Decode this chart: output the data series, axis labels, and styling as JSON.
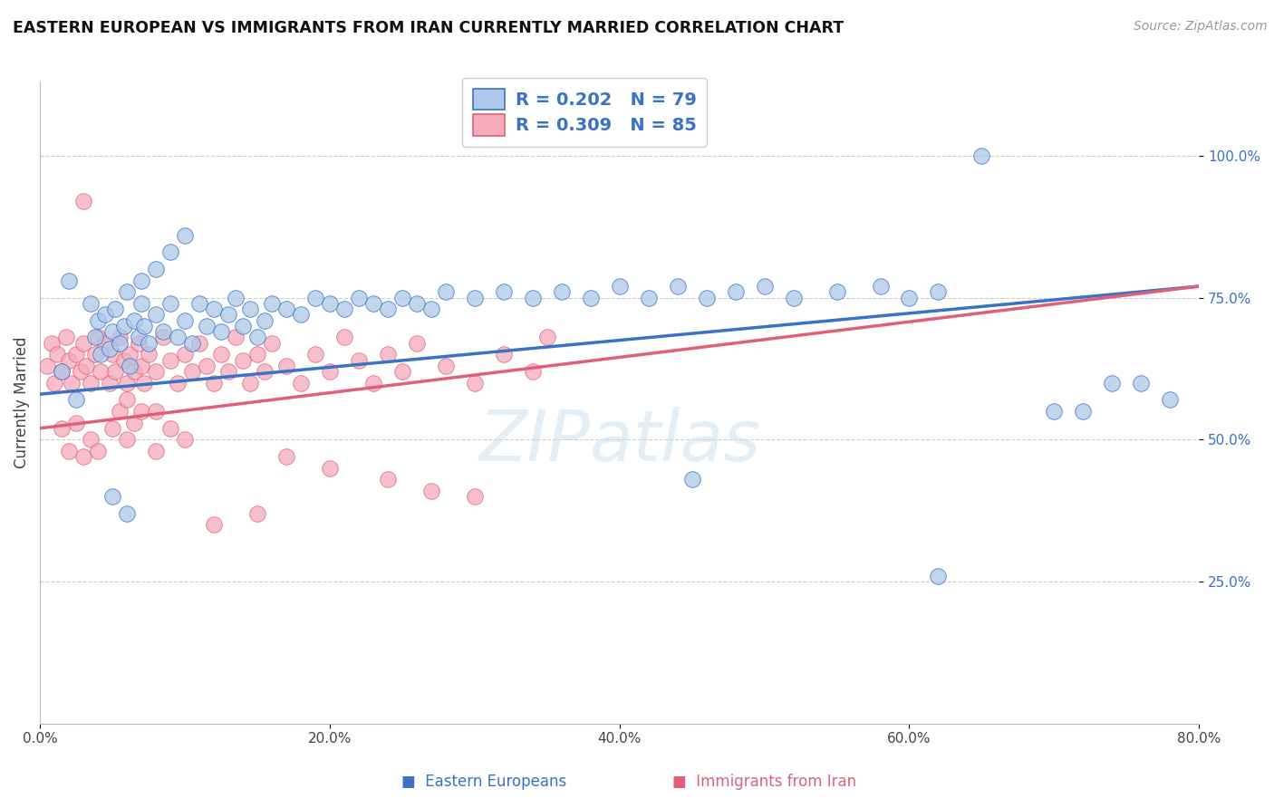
{
  "title": "EASTERN EUROPEAN VS IMMIGRANTS FROM IRAN CURRENTLY MARRIED CORRELATION CHART",
  "source": "Source: ZipAtlas.com",
  "xlabel_vals": [
    0,
    20,
    40,
    60,
    80
  ],
  "ylabel_vals": [
    25,
    50,
    75,
    100
  ],
  "ylabel_label": "Currently Married",
  "legend_labels": [
    "Eastern Europeans",
    "Immigrants from Iran"
  ],
  "R_blue": 0.202,
  "N_blue": 79,
  "R_pink": 0.309,
  "N_pink": 85,
  "blue_color": "#adc8e8",
  "pink_color": "#f5aaba",
  "blue_line_color": "#3a72c4",
  "pink_line_color": "#e0607a",
  "text_color": "#3a72c4",
  "blue_scatter_x": [
    1.5,
    2.0,
    2.5,
    3.5,
    3.8,
    4.0,
    4.2,
    4.5,
    4.8,
    5.0,
    5.2,
    5.5,
    5.8,
    6.0,
    6.2,
    6.5,
    6.8,
    7.0,
    7.2,
    7.5,
    8.0,
    8.5,
    9.0,
    9.5,
    10.0,
    10.5,
    11.0,
    11.5,
    12.0,
    12.5,
    13.0,
    13.5,
    14.0,
    14.5,
    15.0,
    15.5,
    16.0,
    17.0,
    18.0,
    19.0,
    20.0,
    21.0,
    22.0,
    23.0,
    24.0,
    25.0,
    26.0,
    27.0,
    28.0,
    30.0,
    32.0,
    34.0,
    36.0,
    38.0,
    40.0,
    42.0,
    44.0,
    46.0,
    48.0,
    50.0,
    52.0,
    55.0,
    58.0,
    60.0,
    62.0,
    65.0,
    70.0,
    72.0,
    74.0,
    76.0,
    78.0,
    5.0,
    6.0,
    7.0,
    8.0,
    9.0,
    10.0,
    45.0,
    62.0
  ],
  "blue_scatter_y": [
    62,
    78,
    57,
    74,
    68,
    71,
    65,
    72,
    66,
    69,
    73,
    67,
    70,
    76,
    63,
    71,
    68,
    74,
    70,
    67,
    72,
    69,
    74,
    68,
    71,
    67,
    74,
    70,
    73,
    69,
    72,
    75,
    70,
    73,
    68,
    71,
    74,
    73,
    72,
    75,
    74,
    73,
    75,
    74,
    73,
    75,
    74,
    73,
    76,
    75,
    76,
    75,
    76,
    75,
    77,
    75,
    77,
    75,
    76,
    77,
    75,
    76,
    77,
    75,
    76,
    100,
    55,
    55,
    60,
    60,
    57,
    40,
    37,
    78,
    80,
    83,
    86,
    43,
    26
  ],
  "pink_scatter_x": [
    0.5,
    0.8,
    1.0,
    1.2,
    1.5,
    1.8,
    2.0,
    2.2,
    2.5,
    2.8,
    3.0,
    3.2,
    3.5,
    3.8,
    4.0,
    4.2,
    4.5,
    4.8,
    5.0,
    5.2,
    5.5,
    5.8,
    6.0,
    6.2,
    6.5,
    6.8,
    7.0,
    7.2,
    7.5,
    8.0,
    8.5,
    9.0,
    9.5,
    10.0,
    10.5,
    11.0,
    11.5,
    12.0,
    12.5,
    13.0,
    13.5,
    14.0,
    14.5,
    15.0,
    15.5,
    16.0,
    17.0,
    18.0,
    19.0,
    20.0,
    21.0,
    22.0,
    23.0,
    24.0,
    25.0,
    26.0,
    28.0,
    30.0,
    32.0,
    34.0,
    35.0,
    1.5,
    2.0,
    2.5,
    3.0,
    3.5,
    4.0,
    5.0,
    5.5,
    6.0,
    6.5,
    7.0,
    8.0,
    9.0,
    10.0,
    17.0,
    20.0,
    24.0,
    27.0,
    30.0,
    15.0,
    12.0,
    8.0,
    6.0,
    3.0
  ],
  "pink_scatter_y": [
    63,
    67,
    60,
    65,
    62,
    68,
    64,
    60,
    65,
    62,
    67,
    63,
    60,
    65,
    68,
    62,
    67,
    60,
    65,
    62,
    68,
    64,
    60,
    65,
    62,
    67,
    63,
    60,
    65,
    62,
    68,
    64,
    60,
    65,
    62,
    67,
    63,
    60,
    65,
    62,
    68,
    64,
    60,
    65,
    62,
    67,
    63,
    60,
    65,
    62,
    68,
    64,
    60,
    65,
    62,
    67,
    63,
    60,
    65,
    62,
    68,
    52,
    48,
    53,
    47,
    50,
    48,
    52,
    55,
    50,
    53,
    55,
    48,
    52,
    50,
    47,
    45,
    43,
    41,
    40,
    37,
    35,
    55,
    57,
    92
  ],
  "blue_trend_x": [
    0,
    80
  ],
  "blue_trend_y": [
    58,
    77
  ],
  "pink_trend_x": [
    0,
    80
  ],
  "pink_trend_y": [
    52,
    77
  ],
  "xlim": [
    0,
    80
  ],
  "ylim": [
    0,
    113
  ],
  "figsize": [
    14.06,
    8.92
  ],
  "dpi": 100
}
